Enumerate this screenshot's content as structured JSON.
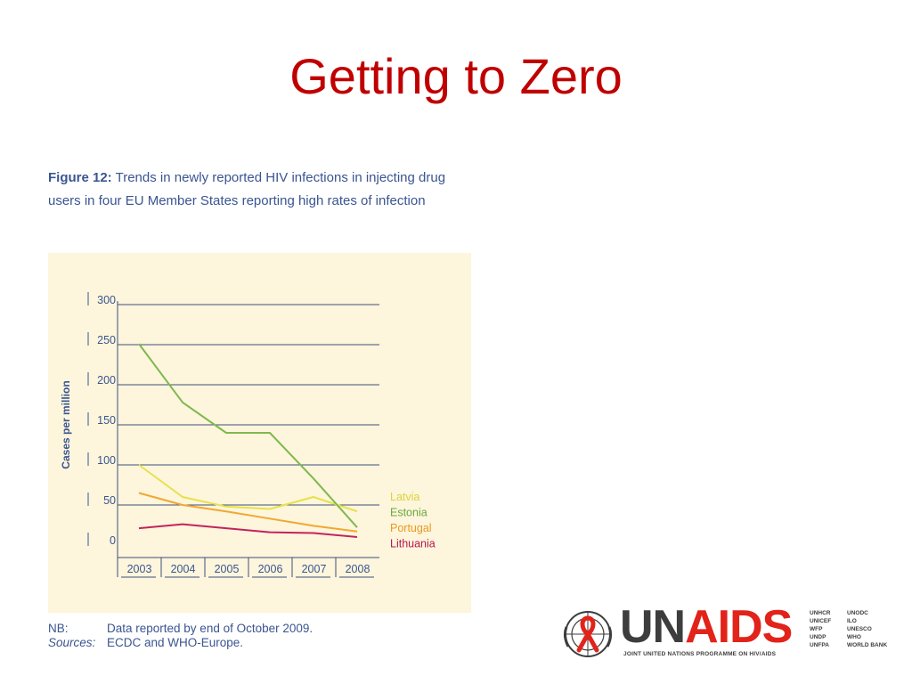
{
  "slide": {
    "title": "Getting to Zero"
  },
  "figure": {
    "label": "Figure 12:",
    "caption": "Trends in newly reported HIV infections in injecting drug users in four EU Member States reporting high rates of infection"
  },
  "notes": {
    "nb_key": "NB:",
    "nb_value": "Data reported by end of October 2009.",
    "sources_key": "Sources:",
    "sources_value": "ECDC and WHO-Europe."
  },
  "logo": {
    "wordmark_un": "UN",
    "wordmark_aids": "AIDS",
    "tagline": "JOINT UNITED NATIONS PROGRAMME ON HIV/AIDS",
    "cosponsors": [
      "UNHCR",
      "UNODC",
      "UNICEF",
      "ILO",
      "WFP",
      "UNESCO",
      "UNDP",
      "WHO",
      "UNFPA",
      "WORLD BANK"
    ],
    "emblem_icon": "un-emblem-red-ribbon-icon"
  },
  "chart_data": {
    "type": "line",
    "title": "",
    "xlabel": "",
    "ylabel": "Cases per million",
    "categories": [
      "2003",
      "2004",
      "2005",
      "2006",
      "2007",
      "2008"
    ],
    "yticks": [
      "0",
      "50",
      "100",
      "150",
      "200",
      "250",
      "300"
    ],
    "ylim": [
      0,
      300
    ],
    "grid": true,
    "legend_position": "right",
    "series": [
      {
        "name": "Latvia",
        "color": "#e6e24a",
        "values": [
          100,
          60,
          48,
          45,
          60,
          42
        ]
      },
      {
        "name": "Estonia",
        "color": "#7fb84e",
        "values": [
          251,
          178,
          140,
          140,
          83,
          22
        ]
      },
      {
        "name": "Portugal",
        "color": "#f0a830",
        "values": [
          65,
          50,
          42,
          33,
          24,
          17
        ]
      },
      {
        "name": "Lithuania",
        "color": "#c2245e",
        "values": [
          21,
          26,
          21,
          16,
          15,
          10
        ]
      }
    ],
    "colors": {
      "axis": "#3a5591",
      "background": "#fdf5dc"
    }
  }
}
